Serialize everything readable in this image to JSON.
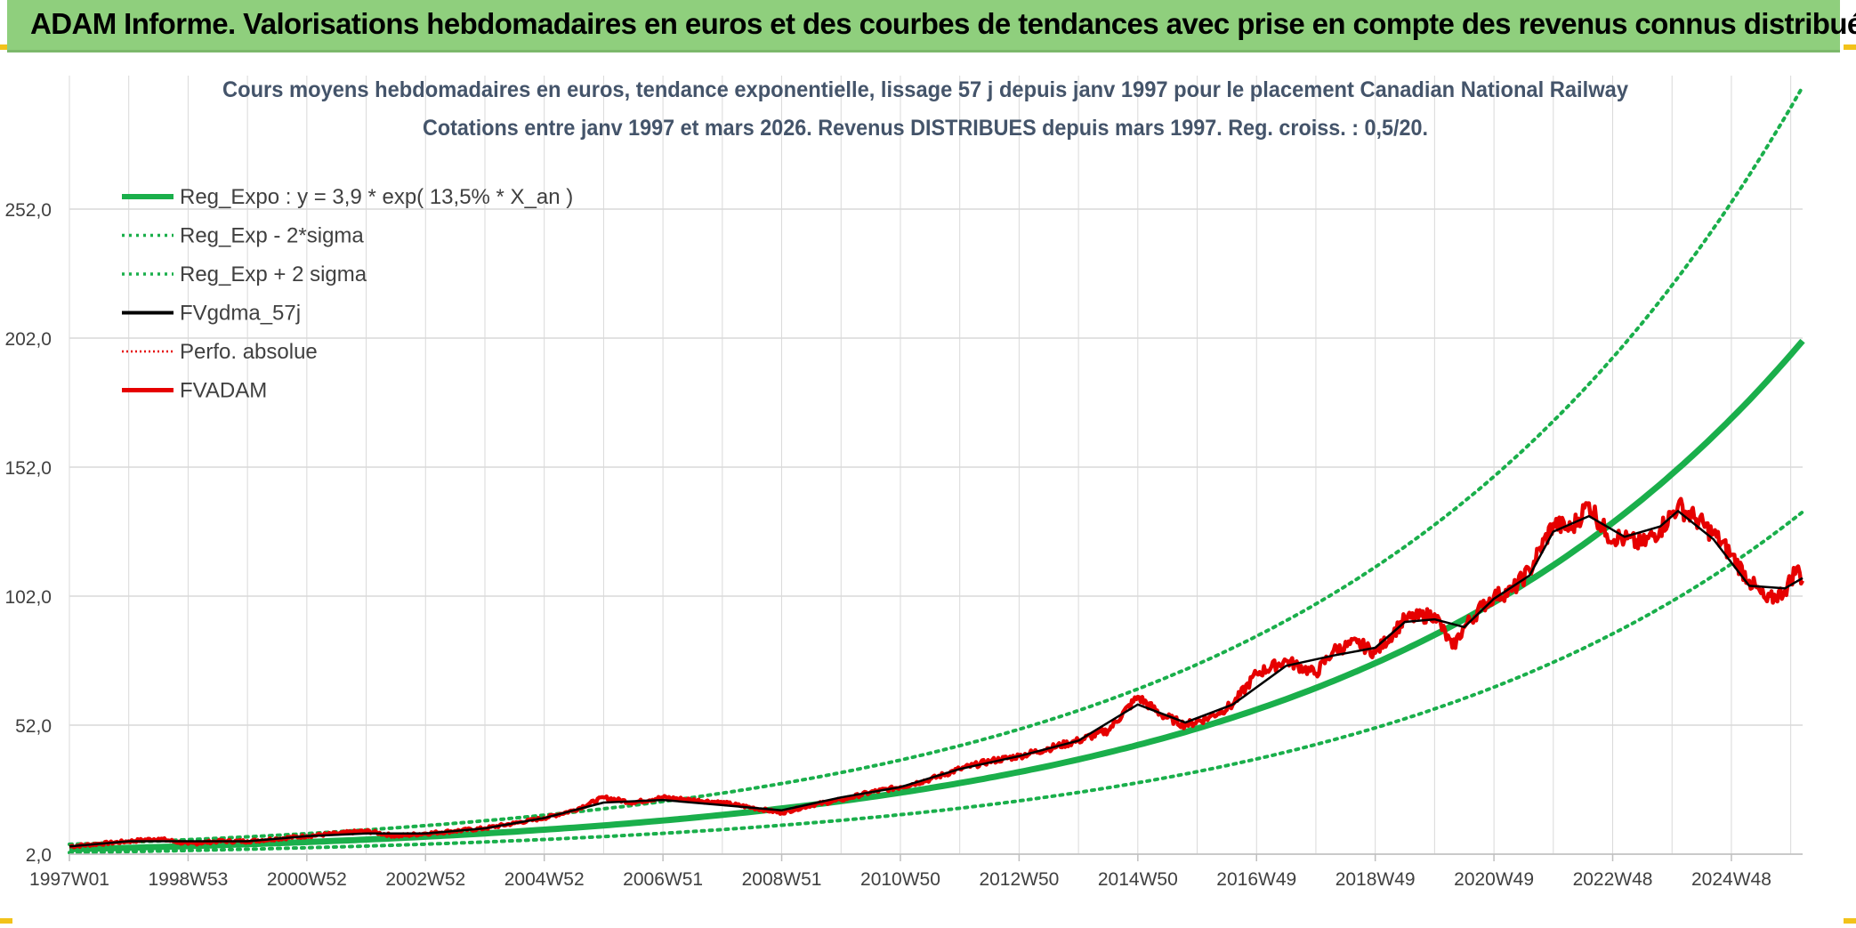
{
  "header": {
    "banner_title": "ADAM Informe. Valorisations hebdomadaires en euros et des courbes de tendances avec prise en compte des revenus connus distribués"
  },
  "colors": {
    "banner_bg": "#8fcf7d",
    "reg_expo": "#1aaf4b",
    "fvgdma": "#000000",
    "fvadam": "#e60000",
    "grid": "#d9d9d9",
    "title_text": "#44546a",
    "axis_text": "#404040"
  },
  "chart_data": {
    "type": "line",
    "title_line1": "Cours moyens hebdomadaires en euros, tendance exponentielle, lissage 57 j depuis janv 1997 pour le placement Canadian National Railway",
    "title_line2": "Cotations entre janv 1997 et mars 2026. Revenus DISTRIBUES depuis mars 1997. Reg. croiss. : 0,5/20.",
    "xlabel": "",
    "ylabel": "",
    "x_range": [
      1997.0,
      2026.2
    ],
    "ylim": [
      2,
      302
    ],
    "y_ticks": [
      2,
      52,
      102,
      152,
      202,
      252
    ],
    "y_tick_labels": [
      "2,0",
      "52,0",
      "102,0",
      "152,0",
      "202,0",
      "252,0"
    ],
    "x_ticks": [
      {
        "label": "1997W01",
        "year": 1997.0
      },
      {
        "label": "1998W53",
        "year": 1999.0
      },
      {
        "label": "2000W52",
        "year": 2001.0
      },
      {
        "label": "2002W52",
        "year": 2003.0
      },
      {
        "label": "2004W52",
        "year": 2005.0
      },
      {
        "label": "2006W51",
        "year": 2007.0
      },
      {
        "label": "2008W51",
        "year": 2009.0
      },
      {
        "label": "2010W50",
        "year": 2011.0
      },
      {
        "label": "2012W50",
        "year": 2013.0
      },
      {
        "label": "2014W50",
        "year": 2015.0
      },
      {
        "label": "2016W49",
        "year": 2017.0
      },
      {
        "label": "2018W49",
        "year": 2019.0
      },
      {
        "label": "2020W49",
        "year": 2021.0
      },
      {
        "label": "2022W48",
        "year": 2023.0
      },
      {
        "label": "2024W48",
        "year": 2025.0
      }
    ],
    "legend": [
      {
        "label": "Reg_Expo : y = 3,9 * exp( 13,5% *  X_an )",
        "series": "reg_expo"
      },
      {
        "label": "Reg_Exp - 2*sigma",
        "series": "reg_lower"
      },
      {
        "label": "Reg_Exp + 2 sigma",
        "series": "reg_upper"
      },
      {
        "label": "FVgdma_57j",
        "series": "fvgdma"
      },
      {
        "label": "Perfo. absolue",
        "series": "perfo"
      },
      {
        "label": "FVADAM",
        "series": "fvadam"
      }
    ],
    "legend_position": "top-left",
    "regression": {
      "a": 3.9,
      "b": 0.135,
      "lower_factor": 0.67,
      "upper_factor": 1.49
    },
    "series": [
      {
        "name": "FVADAM",
        "x": [
          1997.0,
          1997.5,
          1998.0,
          1998.5,
          1999.0,
          1999.5,
          2000.0,
          2000.5,
          2001.0,
          2001.5,
          2002.0,
          2002.5,
          2003.0,
          2003.5,
          2004.0,
          2004.5,
          2005.0,
          2005.5,
          2006.0,
          2006.5,
          2007.0,
          2007.5,
          2008.0,
          2008.5,
          2009.0,
          2009.5,
          2010.0,
          2010.5,
          2011.0,
          2011.5,
          2012.0,
          2012.5,
          2013.0,
          2013.5,
          2014.0,
          2014.5,
          2015.0,
          2015.4,
          2015.8,
          2016.2,
          2016.6,
          2017.0,
          2017.5,
          2018.0,
          2018.3,
          2018.7,
          2019.0,
          2019.5,
          2020.0,
          2020.3,
          2020.5,
          2020.8,
          2021.0,
          2021.3,
          2021.6,
          2022.0,
          2022.3,
          2022.6,
          2022.9,
          2023.2,
          2023.5,
          2023.8,
          2024.1,
          2024.4,
          2024.7,
          2025.0,
          2025.3,
          2025.6,
          2025.9,
          2026.1,
          2026.2
        ],
        "values": [
          5,
          6,
          7,
          8,
          6,
          7,
          7,
          8,
          9,
          10,
          11,
          9,
          10,
          11,
          12,
          14,
          16,
          19,
          24,
          22,
          24,
          23,
          22,
          20,
          18,
          21,
          23,
          26,
          28,
          31,
          35,
          38,
          40,
          43,
          46,
          50,
          63,
          56,
          52,
          55,
          60,
          72,
          77,
          72,
          81,
          84,
          80,
          93,
          95,
          82,
          90,
          98,
          102,
          104,
          112,
          130,
          128,
          138,
          126,
          124,
          122,
          128,
          137,
          132,
          126,
          118,
          108,
          100,
          104,
          113,
          108
        ]
      },
      {
        "name": "FVgdma_57j",
        "x": [
          1997.0,
          1998.0,
          1999.0,
          2000.0,
          2001.0,
          2002.0,
          2003.0,
          2004.0,
          2005.0,
          2006.0,
          2007.0,
          2008.0,
          2009.0,
          2010.0,
          2011.0,
          2012.0,
          2013.0,
          2014.0,
          2015.0,
          2015.8,
          2016.6,
          2017.5,
          2018.3,
          2019.0,
          2019.5,
          2020.0,
          2020.5,
          2021.0,
          2021.6,
          2022.0,
          2022.6,
          2023.2,
          2023.8,
          2024.1,
          2024.7,
          2025.3,
          2025.9,
          2026.2
        ],
        "values": [
          5,
          7,
          7,
          7,
          9,
          10,
          10,
          12,
          16,
          22,
          23,
          21,
          19,
          24,
          28,
          35,
          40,
          46,
          60,
          53,
          60,
          75,
          79,
          82,
          92,
          93,
          90,
          101,
          110,
          127,
          133,
          125,
          129,
          135,
          124,
          106,
          105,
          109
        ]
      }
    ]
  }
}
